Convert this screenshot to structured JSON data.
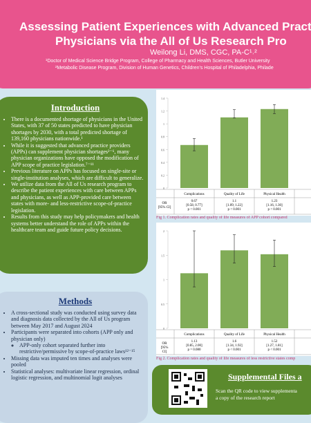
{
  "header": {
    "title": [
      "Assessing Patient Experiences with Advanced Practi",
      "Physicians via the All of Us Research Pro"
    ],
    "author": "Weilong Li, DMS, CGC, PA-C¹˒²",
    "affiliations": [
      "¹Doctor of Medical Science Bridge Program, College of Pharmacy and Health Sciences, Butler University",
      "²Metabolic Disease Program, Division of Human Genetics, Children's Hospital of Philadelphia, Philade"
    ]
  },
  "introduction": {
    "heading": "Introduction",
    "bullets": [
      "There is a documented shortage of physicians in the United States, with 37 of 50 states predicted to have physician shortages by 2030, with a total predicted shortage of 139,160 physicians nationwide.¹",
      "While it is suggested that advanced practice providers (APPs) can supplement physician shortages²⁻⁶, many physician organizations have opposed the modification of APP scope of practice legislation.⁷⁻¹¹",
      "Previous literature on APPs has focused on single-site or single-institution analyses, which are difficult to generalize.",
      "We utilize data from the All of Us research program to describe the patient experiences with care between APPs and physicians, as well as APP-provided care between states with more- and less-restrictive scope-of-practice legislation.",
      "Results from this study may help policymakers and health systems better understand the role of APPs within the healthcare team and guide future policy decisions."
    ]
  },
  "methods": {
    "heading": "Methods",
    "bullets": [
      "A cross-sectional study was conducted using survey data and diagnosis data collected by the All of Us program between May 2017 and August 2024",
      "Participants were separated into cohorts (APP only and physician only)",
      "Missing data was imputed ten times and analyses were pooled",
      "Statistical analyses: multivariate linear regression, ordinal logistic regression, and multinomial logit analyses"
    ],
    "sub_bullets": [
      "APP-only cohort separated further into restrictive/permissive by scope-of-practice laws¹²⁻¹⁵"
    ]
  },
  "figures": [
    {
      "categories": [
        "Complications",
        "Quality of Life",
        "Physical Health"
      ],
      "row_label": [
        "OR",
        "[95% CI]"
      ],
      "values": [
        0.67,
        1.1,
        1.23
      ],
      "ci": [
        {
          "low": 0.58,
          "high": 0.77,
          "label": "[0.58, 0.77]"
        },
        {
          "low": 1.09,
          "high": 1.22,
          "label": "[1.09, 1.22]"
        },
        {
          "low": 1.16,
          "high": 1.3,
          "label": "[1.16, 1.30]"
        }
      ],
      "p": [
        "p < 0.001",
        "p < 0.001",
        "p < 0.001"
      ],
      "ylim": [
        0,
        1.4
      ],
      "yticks": [
        0,
        0.2,
        0.4,
        0.6,
        0.8,
        1,
        1.2,
        1.4
      ],
      "color": "#6b9d3a",
      "caption": "Fig 1. Complication rates and quality of life measures of APP cohort compared"
    },
    {
      "categories": [
        "Complications",
        "Quality of Life",
        "Physical Health"
      ],
      "row_label": [
        "OR",
        "[95%",
        "CI]"
      ],
      "values": [
        1.13,
        1.6,
        1.52
      ],
      "ci": [
        {
          "low": 0.85,
          "high": 2.0,
          "label": "[0.85, 2.00]"
        },
        {
          "low": 1.34,
          "high": 1.92,
          "label": "[1.34, 1.92]"
        },
        {
          "low": 1.27,
          "high": 1.81,
          "label": "[1.27, 1.81]"
        }
      ],
      "p": [
        "p = 0.080",
        "p < 0.001",
        "p < 0.001"
      ],
      "ylim": [
        0,
        2
      ],
      "yticks": [
        0,
        0.5,
        1,
        1.5,
        2
      ],
      "color": "#6b9d3a",
      "caption": "Fig 2. Complication rates and quality of life measures of less restrictive states comp"
    }
  ],
  "supplemental": {
    "heading": "Supplemental Files a",
    "text": [
      "Scan the QR code to view supplementa",
      "a copy of the research report"
    ]
  }
}
